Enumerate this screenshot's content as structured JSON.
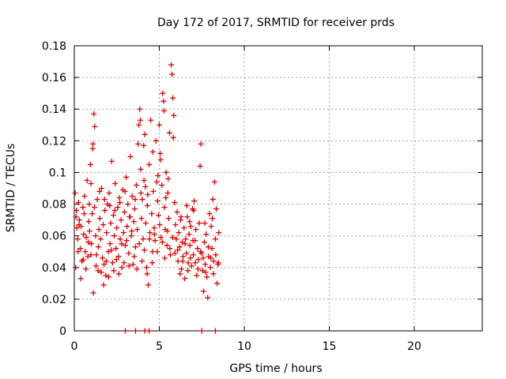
{
  "chart_data": {
    "type": "scatter",
    "title": "Day 172 of 2017, SRMTID for receiver prds",
    "xlabel": "GPS time / hours",
    "ylabel": "SRMTID / TECUs",
    "xlim": [
      0,
      24
    ],
    "ylim": [
      0,
      0.18
    ],
    "xticks": [
      0,
      5,
      10,
      15,
      20
    ],
    "xtick_labels": [
      "0",
      "5",
      "10",
      "15",
      "20"
    ],
    "yticks": [
      0,
      0.02,
      0.04,
      0.06,
      0.08,
      0.1,
      0.12,
      0.14,
      0.16,
      0.18
    ],
    "ytick_labels": [
      "0",
      "0.02",
      "0.04",
      "0.06",
      "0.08",
      "0.1",
      "0.12",
      "0.14",
      "0.16",
      "0.18"
    ],
    "grid": true,
    "marker": "+",
    "color": "#e00000",
    "series": [
      {
        "name": "prds",
        "points": [
          [
            0.05,
            0.087
          ],
          [
            0.1,
            0.072
          ],
          [
            0.15,
            0.065
          ],
          [
            0.2,
            0.058
          ],
          [
            0.25,
            0.081
          ],
          [
            0.3,
            0.07
          ],
          [
            0.35,
            0.052
          ],
          [
            0.4,
            0.066
          ],
          [
            0.45,
            0.044
          ],
          [
            0.5,
            0.078
          ],
          [
            0.55,
            0.061
          ],
          [
            0.6,
            0.085
          ],
          [
            0.65,
            0.05
          ],
          [
            0.7,
            0.059
          ],
          [
            0.75,
            0.095
          ],
          [
            0.8,
            0.047
          ],
          [
            0.85,
            0.069
          ],
          [
            0.9,
            0.063
          ],
          [
            0.95,
            0.105
          ],
          [
            1.0,
            0.055
          ],
          [
            1.05,
            0.074
          ],
          [
            1.1,
            0.118
          ],
          [
            1.15,
            0.137
          ],
          [
            1.2,
            0.129
          ],
          [
            1.25,
            0.06
          ],
          [
            1.3,
            0.048
          ],
          [
            1.35,
            0.083
          ],
          [
            1.4,
            0.038
          ],
          [
            1.45,
            0.064
          ],
          [
            1.5,
            0.071
          ],
          [
            1.55,
            0.058
          ],
          [
            1.6,
            0.09
          ],
          [
            1.65,
            0.046
          ],
          [
            1.7,
            0.067
          ],
          [
            1.75,
            0.042
          ],
          [
            1.8,
            0.076
          ],
          [
            1.85,
            0.035
          ],
          [
            1.9,
            0.062
          ],
          [
            1.95,
            0.08
          ],
          [
            2.0,
            0.05
          ],
          [
            2.05,
            0.087
          ],
          [
            2.1,
            0.055
          ],
          [
            2.15,
            0.068
          ],
          [
            2.2,
            0.107
          ],
          [
            2.25,
            0.043
          ],
          [
            2.3,
            0.073
          ],
          [
            2.35,
            0.06
          ],
          [
            2.4,
            0.093
          ],
          [
            2.45,
            0.052
          ],
          [
            2.5,
            0.065
          ],
          [
            2.55,
            0.078
          ],
          [
            2.6,
            0.047
          ],
          [
            2.65,
            0.084
          ],
          [
            2.7,
            0.058
          ],
          [
            2.75,
            0.07
          ],
          [
            2.8,
            0.04
          ],
          [
            2.85,
            0.089
          ],
          [
            2.9,
            0.062
          ],
          [
            2.95,
            0.075
          ],
          [
            3.0,
            0.054
          ],
          [
            3.05,
            0.097
          ],
          [
            3.1,
            0.066
          ],
          [
            3.15,
            0.08
          ],
          [
            3.2,
            0.049
          ],
          [
            3.25,
            0.072
          ],
          [
            3.3,
            0.11
          ],
          [
            3.35,
            0.06
          ],
          [
            3.4,
            0.085
          ],
          [
            3.45,
            0.042
          ],
          [
            3.5,
            0.069
          ],
          [
            3.55,
            0.077
          ],
          [
            3.6,
            0.053
          ],
          [
            3.65,
            0.092
          ],
          [
            3.7,
            0.064
          ],
          [
            3.75,
            0.118
          ],
          [
            3.8,
            0.13
          ],
          [
            3.85,
            0.14
          ],
          [
            3.9,
            0.102
          ],
          [
            3.95,
            0.071
          ],
          [
            4.0,
            0.083
          ],
          [
            4.05,
            0.058
          ],
          [
            4.1,
            0.095
          ],
          [
            4.15,
            0.124
          ],
          [
            4.2,
            0.068
          ],
          [
            4.25,
            0.04
          ],
          [
            4.3,
            0.079
          ],
          [
            4.35,
            0.029
          ],
          [
            4.4,
            0.105
          ],
          [
            4.45,
            0.062
          ],
          [
            4.5,
            0.133
          ],
          [
            4.55,
            0.074
          ],
          [
            4.6,
            0.05
          ],
          [
            4.65,
            0.088
          ],
          [
            4.7,
            0.065
          ],
          [
            4.75,
            0.057
          ],
          [
            4.8,
            0.12
          ],
          [
            4.85,
            0.094
          ],
          [
            4.9,
            0.082
          ],
          [
            4.95,
            0.073
          ],
          [
            5.0,
            0.13
          ],
          [
            5.05,
            0.112
          ],
          [
            5.1,
            0.059
          ],
          [
            5.15,
            0.092
          ],
          [
            5.2,
            0.15
          ],
          [
            5.25,
            0.145
          ],
          [
            5.3,
            0.078
          ],
          [
            5.35,
            0.064
          ],
          [
            5.4,
            0.1
          ],
          [
            5.45,
            0.054
          ],
          [
            5.5,
            0.087
          ],
          [
            5.55,
            0.071
          ],
          [
            5.6,
            0.125
          ],
          [
            5.65,
            0.048
          ],
          [
            5.7,
            0.168
          ],
          [
            5.75,
            0.162
          ],
          [
            5.8,
            0.147
          ],
          [
            5.85,
            0.136
          ],
          [
            5.9,
            0.081
          ],
          [
            5.95,
            0.067
          ],
          [
            6.0,
            0.058
          ],
          [
            6.05,
            0.075
          ],
          [
            6.1,
            0.044
          ],
          [
            6.15,
            0.062
          ],
          [
            6.2,
            0.053
          ],
          [
            6.25,
            0.07
          ],
          [
            6.3,
            0.039
          ],
          [
            6.35,
            0.056
          ],
          [
            6.4,
            0.047
          ],
          [
            6.45,
            0.065
          ],
          [
            6.5,
            0.033
          ],
          [
            6.55,
            0.058
          ],
          [
            6.6,
            0.049
          ],
          [
            6.65,
            0.072
          ],
          [
            6.7,
            0.043
          ],
          [
            6.75,
            0.061
          ],
          [
            6.8,
            0.054
          ],
          [
            6.85,
            0.066
          ],
          [
            6.9,
            0.041
          ],
          [
            6.95,
            0.077
          ],
          [
            7.0,
            0.048
          ],
          [
            7.05,
            0.082
          ],
          [
            7.1,
            0.057
          ],
          [
            7.15,
            0.064
          ],
          [
            7.2,
            0.035
          ],
          [
            7.25,
            0.052
          ],
          [
            7.3,
            0.045
          ],
          [
            7.35,
            0.068
          ],
          [
            7.4,
            0.104
          ],
          [
            7.45,
            0.118
          ],
          [
            7.5,
            0.049
          ],
          [
            7.55,
            0.038
          ],
          [
            7.6,
            0.025
          ],
          [
            7.65,
            0.056
          ],
          [
            7.7,
            0.042
          ],
          [
            7.75,
            0.061
          ],
          [
            7.8,
            0.034
          ],
          [
            7.85,
            0.021
          ],
          [
            7.9,
            0.047
          ],
          [
            7.95,
            0.074
          ],
          [
            8.0,
            0.04
          ],
          [
            8.05,
            0.066
          ],
          [
            8.1,
            0.052
          ],
          [
            8.15,
            0.083
          ],
          [
            8.2,
            0.044
          ],
          [
            8.25,
            0.094
          ],
          [
            8.3,
            0.058
          ],
          [
            8.35,
            0.077
          ],
          [
            8.4,
            0.03
          ],
          [
            8.45,
            0.042
          ],
          [
            8.5,
            0.062
          ],
          [
            0.08,
            0.04
          ],
          [
            0.22,
            0.05
          ],
          [
            0.38,
            0.033
          ],
          [
            0.52,
            0.045
          ],
          [
            0.68,
            0.039
          ],
          [
            0.82,
            0.056
          ],
          [
            0.98,
            0.048
          ],
          [
            1.12,
            0.024
          ],
          [
            1.28,
            0.041
          ],
          [
            1.42,
            0.053
          ],
          [
            1.58,
            0.037
          ],
          [
            1.72,
            0.029
          ],
          [
            1.88,
            0.044
          ],
          [
            2.02,
            0.034
          ],
          [
            2.18,
            0.051
          ],
          [
            2.32,
            0.038
          ],
          [
            2.48,
            0.045
          ],
          [
            2.62,
            0.036
          ],
          [
            2.78,
            0.055
          ],
          [
            2.92,
            0.043
          ],
          [
            3.08,
            0.057
          ],
          [
            3.22,
            0.041
          ],
          [
            3.38,
            0.063
          ],
          [
            3.52,
            0.047
          ],
          [
            3.68,
            0.039
          ],
          [
            3.82,
            0.055
          ],
          [
            3.98,
            0.044
          ],
          [
            4.12,
            0.051
          ],
          [
            4.28,
            0.036
          ],
          [
            4.42,
            0.058
          ],
          [
            4.58,
            0.043
          ],
          [
            4.72,
            0.061
          ],
          [
            4.88,
            0.05
          ],
          [
            5.02,
            0.067
          ],
          [
            5.18,
            0.056
          ],
          [
            5.32,
            0.046
          ],
          [
            5.48,
            0.063
          ],
          [
            5.62,
            0.052
          ],
          [
            5.78,
            0.059
          ],
          [
            5.92,
            0.049
          ],
          [
            6.08,
            0.051
          ],
          [
            6.22,
            0.036
          ],
          [
            6.38,
            0.044
          ],
          [
            6.52,
            0.055
          ],
          [
            6.68,
            0.038
          ],
          [
            6.82,
            0.046
          ],
          [
            6.98,
            0.057
          ],
          [
            7.12,
            0.043
          ],
          [
            7.28,
            0.039
          ],
          [
            7.42,
            0.05
          ],
          [
            7.58,
            0.046
          ],
          [
            7.72,
            0.037
          ],
          [
            7.88,
            0.053
          ],
          [
            8.02,
            0.046
          ],
          [
            8.18,
            0.036
          ],
          [
            8.32,
            0.048
          ],
          [
            8.48,
            0.043
          ],
          [
            8.12,
            0.071
          ],
          [
            7.68,
            0.068
          ],
          [
            6.62,
            0.079
          ],
          [
            6.28,
            0.072
          ],
          [
            6.78,
            0.069
          ],
          [
            7.02,
            0.076
          ],
          [
            5.38,
            0.084
          ],
          [
            5.52,
            0.096
          ],
          [
            5.08,
            0.108
          ],
          [
            4.92,
            0.098
          ],
          [
            4.62,
            0.113
          ],
          [
            4.32,
            0.086
          ],
          [
            4.18,
            0.091
          ],
          [
            3.92,
            0.087
          ],
          [
            3.58,
            0.083
          ],
          [
            3.28,
            0.072
          ],
          [
            2.98,
            0.088
          ],
          [
            2.68,
            0.081
          ],
          [
            2.38,
            0.076
          ],
          [
            2.08,
            0.079
          ],
          [
            1.78,
            0.083
          ],
          [
            1.48,
            0.088
          ],
          [
            1.18,
            0.078
          ],
          [
            0.88,
            0.08
          ],
          [
            0.58,
            0.074
          ],
          [
            0.28,
            0.067
          ],
          [
            0.12,
            0.076
          ],
          [
            5.82,
            0.122
          ],
          [
            5.28,
            0.139
          ],
          [
            3.88,
            0.133
          ],
          [
            4.08,
            0.117
          ],
          [
            1.08,
            0.115
          ],
          [
            0.98,
            0.093
          ],
          [
            3,
            0
          ],
          [
            3.6,
            0
          ],
          [
            4.15,
            0
          ],
          [
            4.4,
            0
          ],
          [
            7.5,
            0
          ],
          [
            8.3,
            0
          ]
        ]
      }
    ]
  }
}
